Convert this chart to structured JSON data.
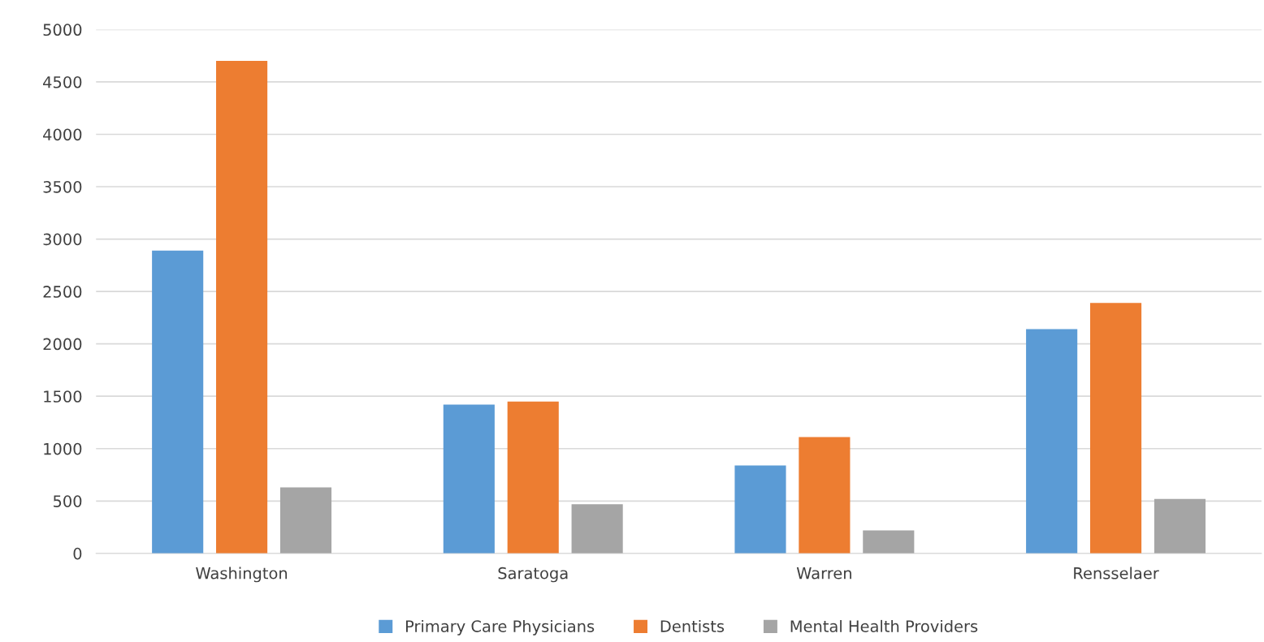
{
  "chart_data": {
    "type": "bar",
    "categories": [
      "Washington",
      "Saratoga",
      "Warren",
      "Rensselaer"
    ],
    "series": [
      {
        "name": "Primary Care Physicians",
        "color": "#5b9bd5",
        "values": [
          2890,
          1420,
          840,
          2140
        ]
      },
      {
        "name": "Dentists",
        "color": "#ed7d31",
        "values": [
          4700,
          1450,
          1110,
          2390
        ]
      },
      {
        "name": "Mental Health Providers",
        "color": "#a5a5a5",
        "values": [
          630,
          470,
          220,
          520
        ]
      }
    ],
    "ylim": [
      0,
      5000
    ],
    "yticks": [
      0,
      500,
      1000,
      1500,
      2000,
      2500,
      3000,
      3500,
      4000,
      4500,
      5000
    ],
    "grid": "y",
    "legend": "bottom"
  }
}
